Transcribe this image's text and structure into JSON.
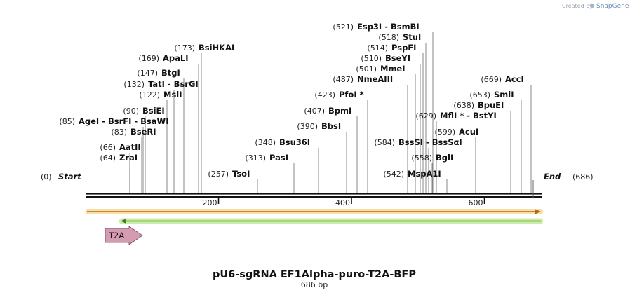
{
  "branding": {
    "created_by": "Created by",
    "brand": "SnapGene"
  },
  "map": {
    "title": "pU6-sgRNA EF1Alpha-puro-T2A-BFP",
    "length_label": "686 bp",
    "total_bp": 686,
    "start": {
      "pos": "(0)",
      "label": "Start"
    },
    "end": {
      "pos": "(686)",
      "label": "End"
    },
    "ticks": [
      {
        "bp": 200,
        "label": "200"
      },
      {
        "bp": 400,
        "label": "400"
      },
      {
        "bp": 600,
        "label": "600"
      }
    ],
    "features": [
      {
        "name": "T2A",
        "start_bp": 30,
        "end_bp": 84,
        "color": "#d59bb2"
      }
    ],
    "orf_colors": {
      "top": "#f0a020",
      "bottom": "#8fce3a"
    }
  },
  "sites": [
    {
      "pos": "(64)",
      "bp": 64,
      "parts": [
        "ZraI"
      ]
    },
    {
      "pos": "(66)",
      "bp": 66,
      "parts": [
        "AatII"
      ]
    },
    {
      "pos": "(83)",
      "bp": 83,
      "parts": [
        "BseRI"
      ]
    },
    {
      "pos": "(85)",
      "bp": 85,
      "parts": [
        "AgeI",
        "BsrFI",
        "BsaWI"
      ]
    },
    {
      "pos": "(90)",
      "bp": 90,
      "parts": [
        "BsiEI"
      ]
    },
    {
      "pos": "(122)",
      "bp": 122,
      "parts": [
        "MslI"
      ]
    },
    {
      "pos": "(132)",
      "bp": 132,
      "parts": [
        "TatI",
        "BsrGI"
      ]
    },
    {
      "pos": "(147)",
      "bp": 147,
      "parts": [
        "BtgI"
      ]
    },
    {
      "pos": "(169)",
      "bp": 169,
      "parts": [
        "ApaLI"
      ]
    },
    {
      "pos": "(173)",
      "bp": 173,
      "parts": [
        "BsiHKAI"
      ]
    },
    {
      "pos": "(257)",
      "bp": 257,
      "parts": [
        "TsoI"
      ]
    },
    {
      "pos": "(313)",
      "bp": 313,
      "parts": [
        "PasI"
      ]
    },
    {
      "pos": "(348)",
      "bp": 348,
      "parts": [
        "Bsu36I"
      ]
    },
    {
      "pos": "(390)",
      "bp": 390,
      "parts": [
        "BbsI"
      ]
    },
    {
      "pos": "(407)",
      "bp": 407,
      "parts": [
        "BpmI"
      ]
    },
    {
      "pos": "(423)",
      "bp": 423,
      "parts": [
        "PfoI *"
      ]
    },
    {
      "pos": "(487)",
      "bp": 487,
      "parts": [
        "NmeAIII"
      ]
    },
    {
      "pos": "(501)",
      "bp": 501,
      "parts": [
        "MmeI"
      ]
    },
    {
      "pos": "(510)",
      "bp": 510,
      "parts": [
        "BseYI"
      ]
    },
    {
      "pos": "(514)",
      "bp": 514,
      "parts": [
        "PspFI"
      ]
    },
    {
      "pos": "(518)",
      "bp": 518,
      "parts": [
        "StuI"
      ]
    },
    {
      "pos": "(521)",
      "bp": 521,
      "parts": [
        "Esp3I",
        "BsmBI"
      ]
    },
    {
      "pos": "(542)",
      "bp": 542,
      "parts": [
        "MspA1I"
      ]
    },
    {
      "pos": "(558)",
      "bp": 558,
      "parts": [
        "BglI"
      ]
    },
    {
      "pos": "(584)",
      "bp": 584,
      "parts": [
        "BssSI",
        "BssSαI"
      ]
    },
    {
      "pos": "(599)",
      "bp": 599,
      "parts": [
        "AcuI"
      ]
    },
    {
      "pos": "(629)",
      "bp": 629,
      "parts": [
        "MflI *",
        "BstYI"
      ]
    },
    {
      "pos": "(638)",
      "bp": 638,
      "parts": [
        "BpuEI"
      ]
    },
    {
      "pos": "(653)",
      "bp": 653,
      "parts": [
        "SmlI"
      ]
    },
    {
      "pos": "(669)",
      "bp": 669,
      "parts": [
        "AccI"
      ]
    }
  ]
}
